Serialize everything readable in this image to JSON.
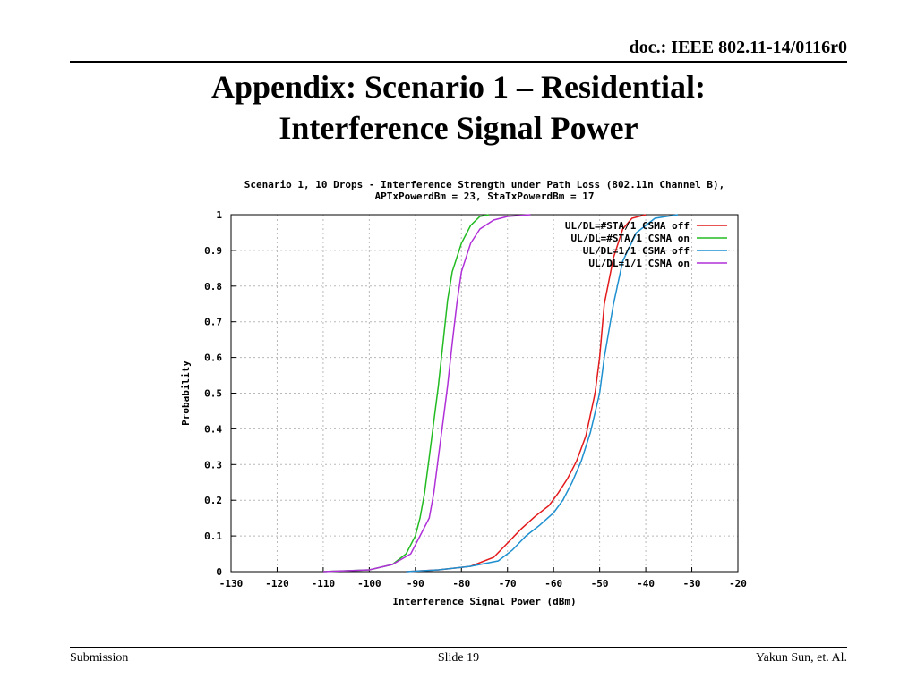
{
  "header": {
    "doc_id": "doc.: IEEE 802.11-14/0116r0"
  },
  "slide": {
    "title_line1": "Appendix: Scenario 1 – Residential:",
    "title_line2": "Interference Signal Power"
  },
  "footer": {
    "left": "Submission",
    "center": "Slide 19",
    "right": "Yakun Sun, et. Al."
  },
  "chart_data": {
    "type": "line",
    "title": "Scenario 1, 10 Drops - Interference Strength under Path Loss (802.11n Channel B),",
    "subtitle": "APTxPowerdBm = 23, StaTxPowerdBm = 17",
    "xlabel": "Interference Signal Power (dBm)",
    "ylabel": "Probability",
    "xlim": [
      -130,
      -20
    ],
    "ylim": [
      0,
      1
    ],
    "xticks": [
      -130,
      -120,
      -110,
      -100,
      -90,
      -80,
      -70,
      -60,
      -50,
      -40,
      -30,
      -20
    ],
    "yticks": [
      0,
      0.1,
      0.2,
      0.3,
      0.4,
      0.5,
      0.6,
      0.7,
      0.8,
      0.9,
      1
    ],
    "ytick_labels": [
      "0",
      "0.1",
      "0.2",
      "0.3",
      "0.4",
      "0.5",
      "0.6",
      "0.7",
      "0.8",
      "0.9",
      "1"
    ],
    "grid": true,
    "legend_position": "top-right",
    "series": [
      {
        "name": "UL/DL=#STA/1 CSMA off",
        "color": "#e31a1c",
        "x": [
          -92,
          -85,
          -78,
          -73,
          -70,
          -67,
          -64,
          -61,
          -59,
          -57,
          -55,
          -53,
          -51,
          -50,
          -49,
          -47,
          -45,
          -43,
          -40
        ],
        "y": [
          0,
          0.005,
          0.015,
          0.04,
          0.08,
          0.12,
          0.155,
          0.185,
          0.22,
          0.26,
          0.31,
          0.38,
          0.5,
          0.6,
          0.75,
          0.88,
          0.96,
          0.99,
          1.0
        ]
      },
      {
        "name": "UL/DL=#STA/1 CSMA on",
        "color": "#22bb22",
        "x": [
          -110,
          -100,
          -95,
          -92,
          -90,
          -89,
          -88,
          -87,
          -86,
          -85,
          -84,
          -83,
          -82,
          -80,
          -78,
          -76,
          -74
        ],
        "y": [
          0,
          0.005,
          0.02,
          0.05,
          0.1,
          0.15,
          0.22,
          0.32,
          0.42,
          0.52,
          0.64,
          0.76,
          0.84,
          0.92,
          0.97,
          0.995,
          1.0
        ]
      },
      {
        "name": "UL/DL=1/1 CSMA off",
        "color": "#1e90d0",
        "x": [
          -92,
          -85,
          -78,
          -72,
          -69,
          -66,
          -63,
          -60,
          -58,
          -56,
          -54,
          -52,
          -50,
          -49,
          -47,
          -45,
          -42,
          -38,
          -33
        ],
        "y": [
          0,
          0.005,
          0.015,
          0.03,
          0.06,
          0.1,
          0.13,
          0.165,
          0.2,
          0.25,
          0.31,
          0.39,
          0.5,
          0.6,
          0.75,
          0.87,
          0.95,
          0.99,
          1.0
        ]
      },
      {
        "name": "UL/DL=1/1 CSMA on",
        "color": "#b030d8",
        "x": [
          -110,
          -100,
          -95,
          -91,
          -89,
          -87,
          -86,
          -85,
          -84,
          -83,
          -82,
          -81,
          -80,
          -78,
          -76,
          -73,
          -70,
          -65
        ],
        "y": [
          0,
          0.005,
          0.02,
          0.05,
          0.1,
          0.15,
          0.22,
          0.32,
          0.42,
          0.52,
          0.64,
          0.75,
          0.84,
          0.92,
          0.96,
          0.985,
          0.995,
          1.0
        ]
      }
    ]
  }
}
